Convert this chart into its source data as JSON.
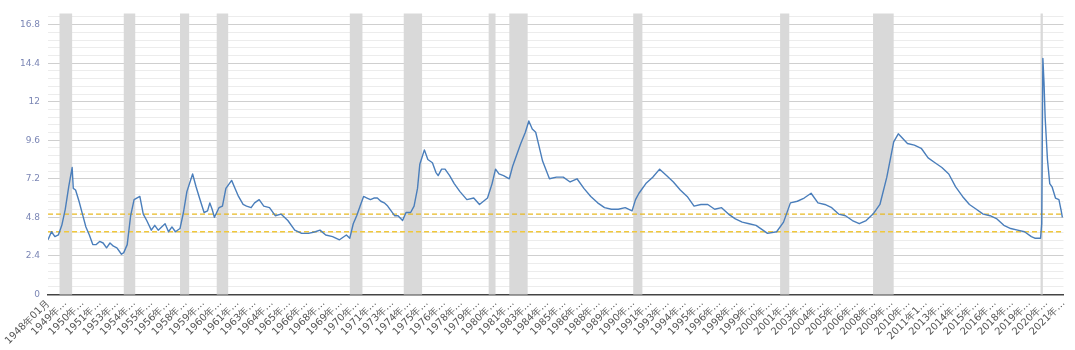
{
  "chart_data": {
    "type": "line",
    "xlim": [
      "1948-01",
      "2021-10"
    ],
    "ylim": [
      0,
      17.5
    ],
    "xticks": [
      {
        "value": "1948-01",
        "label": "1948年01月"
      },
      {
        "value": "1949-04",
        "label": "1949年…"
      },
      {
        "value": "1950-07",
        "label": "1950年…"
      },
      {
        "value": "1951-10",
        "label": "1951年…"
      },
      {
        "value": "1953-01",
        "label": "1953年…"
      },
      {
        "value": "1954-04",
        "label": "1954年…"
      },
      {
        "value": "1955-07",
        "label": "1955年…"
      },
      {
        "value": "1956-10",
        "label": "1956年…"
      },
      {
        "value": "1958-01",
        "label": "1958年…"
      },
      {
        "value": "1959-04",
        "label": "1959年…"
      },
      {
        "value": "1960-07",
        "label": "1960年…"
      },
      {
        "value": "1961-10",
        "label": "1961年…"
      },
      {
        "value": "1963-01",
        "label": "1963年…"
      },
      {
        "value": "1964-04",
        "label": "1964年…"
      },
      {
        "value": "1965-07",
        "label": "1965年…"
      },
      {
        "value": "1966-10",
        "label": "1966年…"
      },
      {
        "value": "1968-01",
        "label": "1968年…"
      },
      {
        "value": "1969-04",
        "label": "1969年…"
      },
      {
        "value": "1970-07",
        "label": "1970年…"
      },
      {
        "value": "1971-10",
        "label": "1971年…"
      },
      {
        "value": "1973-01",
        "label": "1973年…"
      },
      {
        "value": "1974-04",
        "label": "1974年…"
      },
      {
        "value": "1975-07",
        "label": "1975年…"
      },
      {
        "value": "1976-10",
        "label": "1976年…"
      },
      {
        "value": "1978-01",
        "label": "1978年…"
      },
      {
        "value": "1979-04",
        "label": "1979年…"
      },
      {
        "value": "1980-07",
        "label": "1980年…"
      },
      {
        "value": "1981-10",
        "label": "1981年…"
      },
      {
        "value": "1983-01",
        "label": "1983年…"
      },
      {
        "value": "1984-04",
        "label": "1984年…"
      },
      {
        "value": "1985-07",
        "label": "1985年…"
      },
      {
        "value": "1986-10",
        "label": "1986年…"
      },
      {
        "value": "1988-01",
        "label": "1988年…"
      },
      {
        "value": "1989-04",
        "label": "1989年…"
      },
      {
        "value": "1990-07",
        "label": "1990年…"
      },
      {
        "value": "1991-10",
        "label": "1991年…"
      },
      {
        "value": "1993-01",
        "label": "1993年…"
      },
      {
        "value": "1994-04",
        "label": "1994年…"
      },
      {
        "value": "1995-07",
        "label": "1995年…"
      },
      {
        "value": "1996-10",
        "label": "1996年…"
      },
      {
        "value": "1998-01",
        "label": "1998年…"
      },
      {
        "value": "1999-04",
        "label": "1999年…"
      },
      {
        "value": "2000-07",
        "label": "2000年…"
      },
      {
        "value": "2001-10",
        "label": "2001年…"
      },
      {
        "value": "2003-01",
        "label": "2003年…"
      },
      {
        "value": "2004-04",
        "label": "2004年…"
      },
      {
        "value": "2005-07",
        "label": "2005年…"
      },
      {
        "value": "2006-10",
        "label": "2006年…"
      },
      {
        "value": "2008-01",
        "label": "2008年…"
      },
      {
        "value": "2009-04",
        "label": "2009年…"
      },
      {
        "value": "2010-07",
        "label": "2010年…"
      },
      {
        "value": "2011-10",
        "label": "2011年1…"
      },
      {
        "value": "2013-01",
        "label": "2013年…"
      },
      {
        "value": "2014-04",
        "label": "2014年…"
      },
      {
        "value": "2015-07",
        "label": "2015年…"
      },
      {
        "value": "2016-10",
        "label": "2016年…"
      },
      {
        "value": "2018-01",
        "label": "2018年…"
      },
      {
        "value": "2019-04",
        "label": "2019年…"
      },
      {
        "value": "2020-07",
        "label": "2020年…"
      },
      {
        "value": "2021-10",
        "label": "2021年…"
      }
    ],
    "yticks": [
      0,
      {
        "value": 0.48,
        "label": null
      },
      {
        "value": 0.96,
        "label": null
      },
      {
        "value": 1.44,
        "label": null
      },
      {
        "value": 1.92,
        "label": null
      },
      2.4,
      {
        "value": 2.88,
        "label": null
      },
      {
        "value": 3.36,
        "label": null
      },
      {
        "value": 3.84,
        "label": null
      },
      {
        "value": 4.32,
        "label": null
      },
      4.8,
      {
        "value": 5.28,
        "label": null
      },
      {
        "value": 5.76,
        "label": null
      },
      {
        "value": 6.24,
        "label": null
      },
      {
        "value": 6.72,
        "label": null
      },
      7.2,
      {
        "value": 7.68,
        "label": null
      },
      {
        "value": 8.16,
        "label": null
      },
      {
        "value": 8.64,
        "label": null
      },
      {
        "value": 9.12,
        "label": null
      },
      9.6,
      {
        "value": 10.08,
        "label": null
      },
      {
        "value": 10.56,
        "label": null
      },
      {
        "value": 11.04,
        "label": null
      },
      {
        "value": 11.52,
        "label": null
      },
      12,
      {
        "value": 12.48,
        "label": null
      },
      {
        "value": 12.96,
        "label": null
      },
      {
        "value": 13.44,
        "label": null
      },
      {
        "value": 13.92,
        "label": null
      },
      14.4,
      {
        "value": 14.88,
        "label": null
      },
      {
        "value": 15.36,
        "label": null
      },
      {
        "value": 15.84,
        "label": null
      },
      {
        "value": 16.32,
        "label": null
      },
      16.8,
      {
        "value": 17.28,
        "label": null
      }
    ],
    "grid": "y",
    "bands": [
      {
        "axis": "x",
        "from": "1948-11",
        "to": "1949-10",
        "color": "#d9d9d9"
      },
      {
        "axis": "x",
        "from": "1953-07",
        "to": "1954-05",
        "color": "#d9d9d9"
      },
      {
        "axis": "x",
        "from": "1957-08",
        "to": "1958-04",
        "color": "#d9d9d9"
      },
      {
        "axis": "x",
        "from": "1960-04",
        "to": "1961-02",
        "color": "#d9d9d9"
      },
      {
        "axis": "x",
        "from": "1969-12",
        "to": "1970-11",
        "color": "#d9d9d9"
      },
      {
        "axis": "x",
        "from": "1973-11",
        "to": "1975-03",
        "color": "#d9d9d9"
      },
      {
        "axis": "x",
        "from": "1980-01",
        "to": "1980-07",
        "color": "#d9d9d9"
      },
      {
        "axis": "x",
        "from": "1981-07",
        "to": "1982-11",
        "color": "#d9d9d9"
      },
      {
        "axis": "x",
        "from": "1990-07",
        "to": "1991-03",
        "color": "#d9d9d9"
      },
      {
        "axis": "x",
        "from": "2001-03",
        "to": "2001-11",
        "color": "#d9d9d9"
      },
      {
        "axis": "x",
        "from": "2007-12",
        "to": "2009-06",
        "color": "#d9d9d9"
      },
      {
        "axis": "x",
        "from": "2020-02",
        "to": "2020-04",
        "color": "#d9d9d9"
      }
    ],
    "ref_lines": [
      {
        "axis": "y",
        "value": 5.0,
        "color": "#e8b923",
        "line_style": "dashed"
      },
      {
        "axis": "y",
        "value": 3.9,
        "color": "#f0c83c",
        "line_style": "dashed"
      }
    ],
    "series": [
      {
        "color": "#4a7ebb",
        "x": [
          "1948-01",
          "1948-04",
          "1948-07",
          "1948-10",
          "1949-01",
          "1949-04",
          "1949-07",
          "1949-10",
          "1949-11",
          "1950-01",
          "1950-04",
          "1950-07",
          "1950-10",
          "1951-01",
          "1951-04",
          "1951-07",
          "1951-10",
          "1952-01",
          "1952-04",
          "1952-07",
          "1952-10",
          "1953-01",
          "1953-05",
          "1953-07",
          "1953-10",
          "1954-01",
          "1954-04",
          "1954-09",
          "1954-12",
          "1955-03",
          "1955-07",
          "1955-10",
          "1956-01",
          "1956-04",
          "1956-07",
          "1956-10",
          "1957-01",
          "1957-04",
          "1957-08",
          "1957-11",
          "1958-02",
          "1958-07",
          "1958-10",
          "1959-01",
          "1959-05",
          "1959-08",
          "1959-10",
          "1959-12",
          "1960-02",
          "1960-06",
          "1960-09",
          "1960-12",
          "1961-03",
          "1961-05",
          "1961-08",
          "1961-11",
          "1962-03",
          "1962-06",
          "1962-10",
          "1963-01",
          "1963-05",
          "1963-09",
          "1964-02",
          "1964-07",
          "1964-12",
          "1965-06",
          "1965-12",
          "1966-06",
          "1966-12",
          "1967-06",
          "1967-10",
          "1968-03",
          "1968-09",
          "1969-03",
          "1969-09",
          "1969-12",
          "1970-03",
          "1970-06",
          "1970-09",
          "1970-12",
          "1971-03",
          "1971-06",
          "1971-09",
          "1971-12",
          "1972-03",
          "1972-06",
          "1972-09",
          "1972-12",
          "1973-03",
          "1973-06",
          "1973-10",
          "1974-01",
          "1974-05",
          "1974-08",
          "1974-11",
          "1975-01",
          "1975-05",
          "1975-08",
          "1975-12",
          "1976-03",
          "1976-05",
          "1976-08",
          "1976-11",
          "1977-03",
          "1977-07",
          "1977-12",
          "1978-06",
          "1978-12",
          "1979-05",
          "1979-12",
          "1980-04",
          "1980-07",
          "1980-10",
          "1981-02",
          "1981-07",
          "1981-10",
          "1982-01",
          "1982-05",
          "1982-09",
          "1982-12",
          "1983-03",
          "1983-06",
          "1983-09",
          "1983-12",
          "1984-06",
          "1984-12",
          "1985-06",
          "1985-12",
          "1986-06",
          "1986-12",
          "1987-06",
          "1987-12",
          "1988-06",
          "1988-12",
          "1989-06",
          "1989-12",
          "1990-06",
          "1990-09",
          "1990-12",
          "1991-06",
          "1991-12",
          "1992-06",
          "1992-12",
          "1993-06",
          "1993-12",
          "1994-06",
          "1994-12",
          "1995-06",
          "1995-12",
          "1996-06",
          "1996-12",
          "1997-06",
          "1997-12",
          "1998-06",
          "1998-12",
          "1999-06",
          "1999-12",
          "2000-04",
          "2000-12",
          "2001-06",
          "2001-12",
          "2002-06",
          "2002-12",
          "2003-06",
          "2003-12",
          "2004-06",
          "2004-12",
          "2005-06",
          "2005-12",
          "2006-06",
          "2006-12",
          "2007-06",
          "2007-12",
          "2008-06",
          "2008-12",
          "2009-06",
          "2009-10",
          "2010-06",
          "2010-12",
          "2011-06",
          "2011-12",
          "2012-06",
          "2012-12",
          "2013-06",
          "2013-12",
          "2014-06",
          "2014-12",
          "2015-06",
          "2015-12",
          "2016-06",
          "2016-12",
          "2017-06",
          "2017-12",
          "2018-06",
          "2018-12",
          "2019-06",
          "2019-09",
          "2020-02",
          "2020-03",
          "2020-04",
          "2020-05",
          "2020-06",
          "2020-08",
          "2020-10",
          "2020-12",
          "2021-03",
          "2021-06",
          "2021-08",
          "2021-09"
        ],
        "values": [
          3.4,
          3.9,
          3.6,
          3.7,
          4.3,
          5.3,
          6.7,
          7.9,
          6.6,
          6.5,
          5.8,
          5.0,
          4.2,
          3.7,
          3.1,
          3.1,
          3.3,
          3.2,
          2.9,
          3.2,
          3.0,
          2.9,
          2.5,
          2.6,
          3.1,
          4.9,
          5.9,
          6.1,
          5.0,
          4.6,
          4.0,
          4.3,
          4.0,
          4.2,
          4.4,
          3.9,
          4.2,
          3.9,
          4.1,
          5.1,
          6.4,
          7.5,
          6.7,
          6.0,
          5.1,
          5.2,
          5.7,
          5.3,
          4.8,
          5.4,
          5.5,
          6.6,
          6.9,
          7.1,
          6.6,
          6.1,
          5.6,
          5.5,
          5.4,
          5.7,
          5.9,
          5.5,
          5.4,
          4.9,
          5.0,
          4.6,
          4.0,
          3.8,
          3.8,
          3.9,
          4.0,
          3.7,
          3.6,
          3.4,
          3.7,
          3.5,
          4.4,
          4.9,
          5.5,
          6.1,
          6.0,
          5.9,
          6.0,
          6.0,
          5.8,
          5.7,
          5.5,
          5.2,
          4.9,
          4.9,
          4.6,
          5.1,
          5.1,
          5.5,
          6.6,
          8.1,
          9.0,
          8.4,
          8.2,
          7.6,
          7.4,
          7.8,
          7.8,
          7.4,
          6.9,
          6.4,
          5.9,
          6.0,
          5.6,
          6.0,
          6.9,
          7.8,
          7.5,
          7.4,
          7.2,
          8.0,
          8.6,
          9.4,
          10.1,
          10.8,
          10.3,
          10.1,
          9.2,
          8.3,
          7.2,
          7.3,
          7.3,
          7.0,
          7.2,
          6.6,
          6.1,
          5.7,
          5.4,
          5.3,
          5.3,
          5.4,
          5.2,
          5.9,
          6.3,
          6.9,
          7.3,
          7.8,
          7.4,
          7.0,
          6.5,
          6.1,
          5.5,
          5.6,
          5.6,
          5.3,
          5.4,
          5.0,
          4.7,
          4.5,
          4.4,
          4.3,
          4.0,
          3.8,
          3.9,
          4.5,
          5.7,
          5.8,
          6.0,
          6.3,
          5.7,
          5.6,
          5.4,
          5.0,
          4.9,
          4.6,
          4.4,
          4.6,
          5.0,
          5.6,
          7.3,
          9.5,
          10.0,
          9.4,
          9.3,
          9.1,
          8.5,
          8.2,
          7.9,
          7.5,
          6.7,
          6.1,
          5.6,
          5.3,
          5.0,
          4.9,
          4.7,
          4.3,
          4.1,
          4.0,
          3.9,
          3.6,
          3.5,
          3.5,
          4.4,
          14.7,
          13.2,
          11.0,
          8.4,
          6.9,
          6.7,
          6.0,
          5.9,
          5.2,
          4.8
        ]
      }
    ]
  }
}
